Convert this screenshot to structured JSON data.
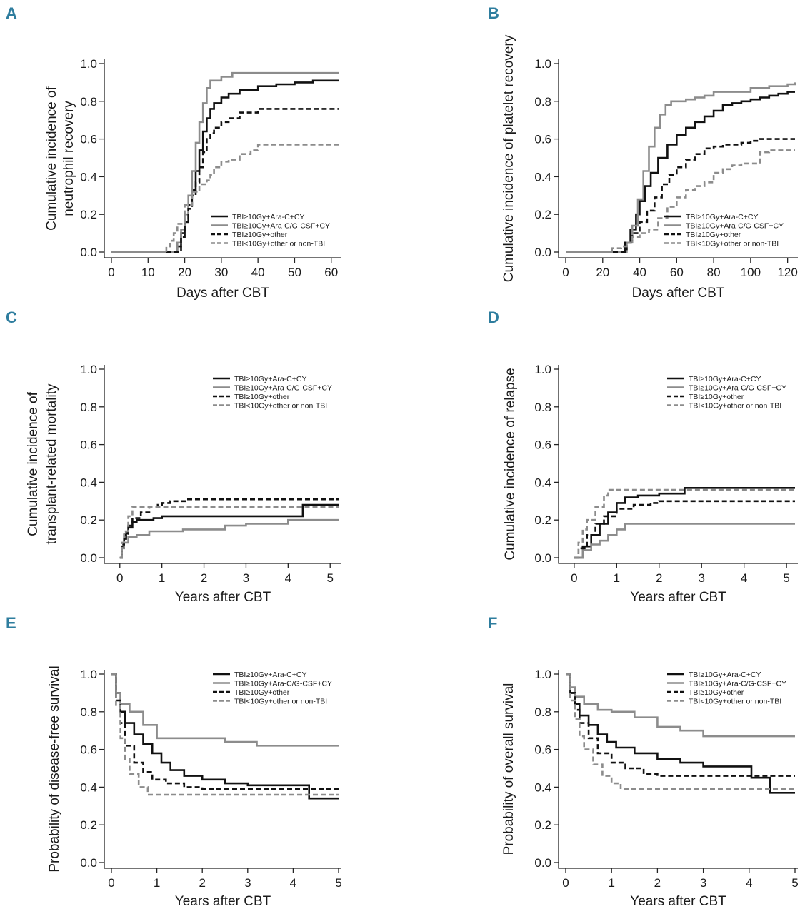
{
  "series_styles": [
    {
      "name": "TBI≥10Gy+Ara-C+CY",
      "color": "#111111",
      "dash": "solid"
    },
    {
      "name": "TBI≥10Gy+Ara-C/G-CSF+CY",
      "color": "#8c8c8c",
      "dash": "solid"
    },
    {
      "name": "TBI≥10Gy+other",
      "color": "#111111",
      "dash": "dashed"
    },
    {
      "name": "TBI<10Gy+other or non-TBI",
      "color": "#8c8c8c",
      "dash": "dashed"
    }
  ],
  "chart_data": [
    {
      "panel": "A",
      "type": "line",
      "xlabel": "Days after CBT",
      "ylabel": [
        "Cumulative incidence of",
        "neutrophil recovery"
      ],
      "xlim": [
        0,
        62
      ],
      "ylim": [
        0,
        1.0
      ],
      "xticks": [
        0,
        10,
        20,
        30,
        40,
        50,
        60
      ],
      "yticks": [
        0.0,
        0.2,
        0.4,
        0.6,
        0.8,
        1.0
      ],
      "legend": [
        "TBI≥10Gy+Ara-C+CY",
        "TBI≥10Gy+Ara-C/G-CSF+CY",
        "TBI≥10Gy+other",
        "TBI<10Gy+other or non-TBI"
      ],
      "legend_position": "bottom-right",
      "series": [
        {
          "name": "TBI≥10Gy+Ara-C+CY",
          "x": [
            0,
            17,
            18,
            19,
            20,
            21,
            22,
            23,
            24,
            25,
            26,
            27,
            28,
            30,
            32,
            35,
            40,
            45,
            50,
            55,
            62
          ],
          "y": [
            0,
            0,
            0.03,
            0.1,
            0.16,
            0.25,
            0.33,
            0.43,
            0.54,
            0.64,
            0.71,
            0.76,
            0.79,
            0.82,
            0.84,
            0.86,
            0.88,
            0.89,
            0.9,
            0.91,
            0.91
          ]
        },
        {
          "name": "TBI≥10Gy+Ara-C/G-CSF+CY",
          "x": [
            0,
            16,
            18,
            19,
            20,
            21,
            22,
            23,
            24,
            25,
            26,
            27,
            30,
            33,
            62
          ],
          "y": [
            0,
            0,
            0.05,
            0.12,
            0.2,
            0.3,
            0.43,
            0.58,
            0.69,
            0.79,
            0.87,
            0.91,
            0.93,
            0.95,
            0.95
          ]
        },
        {
          "name": "TBI≥10Gy+other",
          "x": [
            0,
            17,
            19,
            20,
            21,
            22,
            23,
            24,
            25,
            26,
            27,
            28,
            30,
            32,
            35,
            40,
            62
          ],
          "y": [
            0,
            0,
            0.08,
            0.16,
            0.23,
            0.3,
            0.37,
            0.45,
            0.53,
            0.6,
            0.63,
            0.66,
            0.69,
            0.71,
            0.74,
            0.76,
            0.76
          ]
        },
        {
          "name": "TBI<10Gy+other or non-TBI",
          "x": [
            0,
            14,
            15,
            16,
            17,
            18,
            20,
            22,
            24,
            26,
            27,
            28,
            30,
            32,
            35,
            38,
            40,
            42,
            62
          ],
          "y": [
            0,
            0,
            0.03,
            0.06,
            0.1,
            0.15,
            0.25,
            0.32,
            0.36,
            0.38,
            0.41,
            0.45,
            0.48,
            0.49,
            0.52,
            0.54,
            0.57,
            0.57,
            0.57
          ]
        }
      ]
    },
    {
      "panel": "B",
      "type": "line",
      "xlabel": "Days after CBT",
      "ylabel": [
        "Cumulative incidence of platelet recovery"
      ],
      "xlim": [
        0,
        124
      ],
      "ylim": [
        0,
        1.0
      ],
      "xticks": [
        0,
        20,
        40,
        60,
        80,
        100,
        120
      ],
      "yticks": [
        0.0,
        0.2,
        0.4,
        0.6,
        0.8,
        1.0
      ],
      "legend": [
        "TBI≥10Gy+Ara-C+CY",
        "TBI≥10Gy+Ara-C/G-CSF+CY",
        "TBI≥10Gy+other",
        "TBI<10Gy+other or non-TBI"
      ],
      "legend_position": "bottom-right",
      "series": [
        {
          "name": "TBI≥10Gy+Ara-C+CY",
          "x": [
            0,
            28,
            32,
            35,
            38,
            40,
            43,
            46,
            50,
            55,
            60,
            65,
            70,
            75,
            80,
            85,
            90,
            95,
            100,
            105,
            110,
            115,
            120,
            124
          ],
          "y": [
            0,
            0,
            0.05,
            0.12,
            0.2,
            0.27,
            0.35,
            0.42,
            0.5,
            0.57,
            0.62,
            0.66,
            0.69,
            0.72,
            0.75,
            0.78,
            0.79,
            0.8,
            0.81,
            0.82,
            0.83,
            0.84,
            0.85,
            0.85
          ]
        },
        {
          "name": "TBI≥10Gy+Ara-C/G-CSF+CY",
          "x": [
            0,
            30,
            33,
            36,
            39,
            42,
            45,
            48,
            51,
            54,
            57,
            60,
            65,
            70,
            75,
            80,
            90,
            100,
            110,
            120,
            124
          ],
          "y": [
            0,
            0,
            0.05,
            0.14,
            0.28,
            0.43,
            0.56,
            0.66,
            0.73,
            0.78,
            0.8,
            0.8,
            0.81,
            0.82,
            0.83,
            0.85,
            0.85,
            0.87,
            0.88,
            0.89,
            0.9
          ]
        },
        {
          "name": "TBI≥10Gy+other",
          "x": [
            0,
            28,
            33,
            36,
            40,
            44,
            48,
            52,
            56,
            60,
            65,
            70,
            75,
            80,
            85,
            90,
            95,
            100,
            105,
            110,
            124
          ],
          "y": [
            0,
            0,
            0.05,
            0.1,
            0.16,
            0.22,
            0.29,
            0.36,
            0.41,
            0.45,
            0.49,
            0.52,
            0.55,
            0.56,
            0.57,
            0.57,
            0.58,
            0.59,
            0.6,
            0.6,
            0.6
          ]
        },
        {
          "name": "TBI<10Gy+other or non-TBI",
          "x": [
            0,
            22,
            25,
            30,
            33,
            36,
            40,
            45,
            50,
            55,
            60,
            65,
            70,
            75,
            80,
            85,
            90,
            95,
            100,
            105,
            110,
            124
          ],
          "y": [
            0,
            0,
            0.02,
            0.03,
            0.05,
            0.08,
            0.1,
            0.12,
            0.18,
            0.24,
            0.29,
            0.33,
            0.35,
            0.37,
            0.42,
            0.44,
            0.46,
            0.47,
            0.47,
            0.53,
            0.54,
            0.54
          ]
        }
      ]
    },
    {
      "panel": "C",
      "type": "line",
      "xlabel": "Years after CBT",
      "ylabel": [
        "Cumulative incidence of",
        "transplant-related mortality"
      ],
      "xlim": [
        -0.2,
        5.2
      ],
      "ylim": [
        0,
        1.0
      ],
      "xticks": [
        0,
        1,
        2,
        3,
        4,
        5
      ],
      "yticks": [
        0.0,
        0.2,
        0.4,
        0.6,
        0.8,
        1.0
      ],
      "legend": [
        "TBI≥10Gy+Ara-C+CY",
        "TBI≥10Gy+Ara-C/G-CSF+CY",
        "TBI≥10Gy+other",
        "TBI<10Gy+other or non-TBI"
      ],
      "legend_position": "top-right",
      "series": [
        {
          "name": "TBI≥10Gy+Ara-C+CY",
          "x": [
            0,
            0.05,
            0.1,
            0.15,
            0.2,
            0.3,
            0.4,
            0.6,
            0.8,
            1.0,
            2.5,
            4.3,
            4.35,
            5.2
          ],
          "y": [
            0,
            0.06,
            0.1,
            0.13,
            0.16,
            0.19,
            0.2,
            0.2,
            0.21,
            0.22,
            0.22,
            0.22,
            0.28,
            0.28
          ]
        },
        {
          "name": "TBI≥10Gy+Ara-C/G-CSF+CY",
          "x": [
            0,
            0.05,
            0.1,
            0.2,
            0.4,
            0.7,
            1.0,
            1.5,
            2.0,
            2.5,
            3.0,
            4.0,
            4.5,
            5.2
          ],
          "y": [
            0,
            0.05,
            0.08,
            0.11,
            0.12,
            0.14,
            0.14,
            0.15,
            0.15,
            0.17,
            0.18,
            0.2,
            0.2,
            0.2
          ]
        },
        {
          "name": "TBI≥10Gy+other",
          "x": [
            0,
            0.05,
            0.1,
            0.2,
            0.3,
            0.5,
            0.7,
            0.9,
            1.0,
            1.2,
            1.4,
            1.6,
            1.8,
            2.0,
            3.0,
            5.2
          ],
          "y": [
            0,
            0.07,
            0.12,
            0.17,
            0.21,
            0.24,
            0.27,
            0.28,
            0.29,
            0.3,
            0.3,
            0.31,
            0.31,
            0.31,
            0.31,
            0.31
          ]
        },
        {
          "name": "TBI<10Gy+other or non-TBI",
          "x": [
            0,
            0.05,
            0.1,
            0.2,
            0.3,
            0.8,
            1.5,
            3.0,
            5.2
          ],
          "y": [
            0,
            0.08,
            0.14,
            0.22,
            0.27,
            0.27,
            0.27,
            0.27,
            0.27
          ]
        }
      ]
    },
    {
      "panel": "D",
      "type": "line",
      "xlabel": "Years after CBT",
      "ylabel": [
        "Cumulative incidence of relapse"
      ],
      "xlim": [
        -0.2,
        5.2
      ],
      "ylim": [
        0,
        1.0
      ],
      "xticks": [
        0,
        1,
        2,
        3,
        4,
        5
      ],
      "yticks": [
        0.0,
        0.2,
        0.4,
        0.6,
        0.8,
        1.0
      ],
      "legend": [
        "TBI≥10Gy+Ara-C+CY",
        "TBI≥10Gy+Ara-C/G-CSF+CY",
        "TBI≥10Gy+other",
        "TBI<10Gy+other or non-TBI"
      ],
      "legend_position": "top-right",
      "series": [
        {
          "name": "TBI≥10Gy+Ara-C+CY",
          "x": [
            0,
            0.2,
            0.4,
            0.6,
            0.8,
            1.0,
            1.2,
            1.5,
            2.0,
            2.5,
            2.6,
            5.2
          ],
          "y": [
            0,
            0.06,
            0.12,
            0.18,
            0.24,
            0.29,
            0.32,
            0.33,
            0.34,
            0.34,
            0.37,
            0.37
          ]
        },
        {
          "name": "TBI≥10Gy+Ara-C/G-CSF+CY",
          "x": [
            0,
            0.2,
            0.4,
            0.6,
            0.8,
            1.0,
            1.2,
            5.2
          ],
          "y": [
            0,
            0.04,
            0.07,
            0.09,
            0.12,
            0.15,
            0.18,
            0.18
          ]
        },
        {
          "name": "TBI≥10Gy+other",
          "x": [
            0,
            0.1,
            0.3,
            0.5,
            0.7,
            1.0,
            1.4,
            1.8,
            2.0,
            5.2
          ],
          "y": [
            0,
            0.05,
            0.12,
            0.18,
            0.22,
            0.26,
            0.28,
            0.29,
            0.3,
            0.3
          ]
        },
        {
          "name": "TBI<10Gy+other or non-TBI",
          "x": [
            0,
            0.1,
            0.2,
            0.3,
            0.5,
            0.7,
            0.8,
            5.2
          ],
          "y": [
            0,
            0.08,
            0.15,
            0.2,
            0.27,
            0.33,
            0.36,
            0.36
          ]
        }
      ]
    },
    {
      "panel": "E",
      "type": "line",
      "xlabel": "Years after CBT",
      "ylabel": [
        "Probability of disease-free survival"
      ],
      "xlim": [
        0,
        5
      ],
      "ylim": [
        0,
        1.0
      ],
      "xticks": [
        0,
        1,
        2,
        3,
        4,
        5
      ],
      "yticks": [
        0.0,
        0.2,
        0.4,
        0.6,
        0.8,
        1.0
      ],
      "legend": [
        "TBI≥10Gy+Ara-C+CY",
        "TBI≥10Gy+Ara-C/G-CSF+CY",
        "TBI≥10Gy+other",
        "TBI<10Gy+other or non-TBI"
      ],
      "legend_position": "top-right",
      "series": [
        {
          "name": "TBI≥10Gy+Ara-C+CY",
          "x": [
            0,
            0.1,
            0.2,
            0.3,
            0.5,
            0.7,
            0.9,
            1.1,
            1.3,
            1.6,
            2.0,
            2.5,
            3.0,
            4.3,
            4.35,
            5
          ],
          "y": [
            1.0,
            0.9,
            0.8,
            0.74,
            0.68,
            0.63,
            0.58,
            0.53,
            0.49,
            0.46,
            0.44,
            0.42,
            0.41,
            0.41,
            0.34,
            0.34
          ]
        },
        {
          "name": "TBI≥10Gy+Ara-C/G-CSF+CY",
          "x": [
            0,
            0.1,
            0.2,
            0.4,
            0.7,
            1.0,
            2.0,
            2.5,
            3.0,
            3.2,
            5
          ],
          "y": [
            1.0,
            0.9,
            0.84,
            0.8,
            0.73,
            0.66,
            0.66,
            0.64,
            0.64,
            0.62,
            0.62
          ]
        },
        {
          "name": "TBI≥10Gy+other",
          "x": [
            0,
            0.1,
            0.2,
            0.3,
            0.5,
            0.7,
            0.9,
            1.2,
            1.6,
            2.0,
            2.5,
            5
          ],
          "y": [
            1.0,
            0.86,
            0.74,
            0.62,
            0.53,
            0.48,
            0.44,
            0.42,
            0.4,
            0.39,
            0.39,
            0.39
          ]
        },
        {
          "name": "TBI<10Gy+other or non-TBI",
          "x": [
            0,
            0.1,
            0.2,
            0.3,
            0.4,
            0.6,
            0.8,
            1.5,
            5
          ],
          "y": [
            1.0,
            0.83,
            0.66,
            0.55,
            0.47,
            0.4,
            0.36,
            0.36,
            0.36
          ]
        }
      ]
    },
    {
      "panel": "F",
      "type": "line",
      "xlabel": "Years after CBT",
      "ylabel": [
        "Probability of overall survival"
      ],
      "xlim": [
        0,
        5
      ],
      "ylim": [
        0,
        1.0
      ],
      "xticks": [
        0,
        1,
        2,
        3,
        4,
        5
      ],
      "yticks": [
        0.0,
        0.2,
        0.4,
        0.6,
        0.8,
        1.0
      ],
      "legend": [
        "TBI≥10Gy+Ara-C+CY",
        "TBI≥10Gy+Ara-C/G-CSF+CY",
        "TBI≥10Gy+other",
        "TBI<10Gy+other or non-TBI"
      ],
      "legend_position": "top-right",
      "series": [
        {
          "name": "TBI≥10Gy+Ara-C+CY",
          "x": [
            0,
            0.1,
            0.2,
            0.3,
            0.5,
            0.7,
            0.9,
            1.1,
            1.5,
            2.0,
            2.5,
            3.0,
            4.0,
            4.05,
            4.4,
            4.45,
            5
          ],
          "y": [
            1.0,
            0.9,
            0.84,
            0.78,
            0.73,
            0.68,
            0.64,
            0.61,
            0.58,
            0.55,
            0.53,
            0.51,
            0.51,
            0.45,
            0.45,
            0.37,
            0.37
          ]
        },
        {
          "name": "TBI≥10Gy+Ara-C/G-CSF+CY",
          "x": [
            0,
            0.1,
            0.2,
            0.4,
            0.7,
            1.0,
            1.5,
            2.0,
            2.5,
            3.0,
            5
          ],
          "y": [
            1.0,
            0.93,
            0.88,
            0.84,
            0.81,
            0.8,
            0.77,
            0.72,
            0.7,
            0.67,
            0.67
          ]
        },
        {
          "name": "TBI≥10Gy+other",
          "x": [
            0,
            0.1,
            0.2,
            0.3,
            0.5,
            0.7,
            1.0,
            1.3,
            1.7,
            2.0,
            2.5,
            5
          ],
          "y": [
            1.0,
            0.9,
            0.81,
            0.74,
            0.66,
            0.58,
            0.53,
            0.5,
            0.47,
            0.46,
            0.46,
            0.46
          ]
        },
        {
          "name": "TBI<10Gy+other or non-TBI",
          "x": [
            0,
            0.1,
            0.2,
            0.3,
            0.4,
            0.6,
            0.8,
            1.0,
            1.2,
            2.0,
            5
          ],
          "y": [
            1.0,
            0.86,
            0.76,
            0.67,
            0.6,
            0.52,
            0.46,
            0.42,
            0.39,
            0.39,
            0.39
          ]
        }
      ]
    }
  ]
}
